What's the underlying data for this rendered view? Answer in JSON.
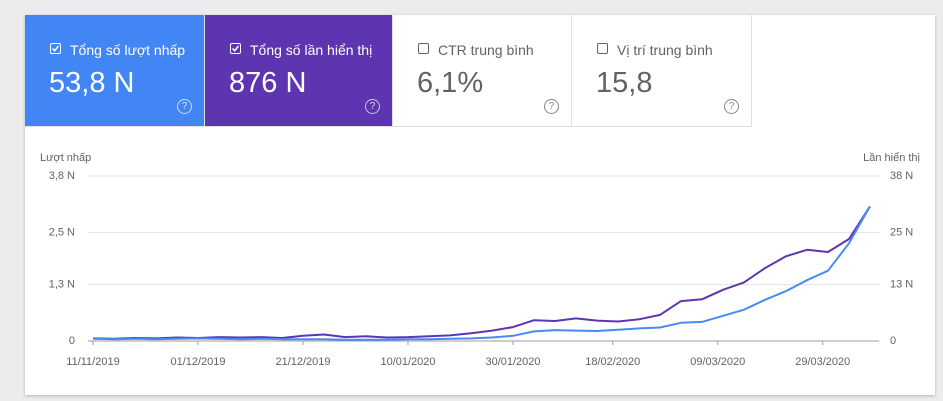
{
  "cards": [
    {
      "label": "Tổng số lượt nhấp",
      "value": "53,8 N",
      "selected": true,
      "color": "#4285f4"
    },
    {
      "label": "Tổng số lần hiển thị",
      "value": "876 N",
      "selected": true,
      "color": "#5e35b1"
    },
    {
      "label": "CTR trung bình",
      "value": "6,1%",
      "selected": false,
      "color": "#ffffff"
    },
    {
      "label": "Vị trí trung bình",
      "value": "15,8",
      "selected": false,
      "color": "#ffffff"
    }
  ],
  "chart_data": {
    "type": "line",
    "y_label": "Lượt nhấp",
    "y2_label": "Lần hiển thị",
    "x": [
      "11/11/2019",
      "15/11/2019",
      "19/11/2019",
      "23/11/2019",
      "27/11/2019",
      "01/12/2019",
      "05/12/2019",
      "09/12/2019",
      "13/12/2019",
      "17/12/2019",
      "21/12/2019",
      "25/12/2019",
      "29/12/2019",
      "02/01/2020",
      "06/01/2020",
      "10/01/2020",
      "14/01/2020",
      "18/01/2020",
      "22/01/2020",
      "26/01/2020",
      "30/01/2020",
      "03/02/2020",
      "07/02/2020",
      "11/02/2020",
      "15/02/2020",
      "19/02/2020",
      "23/02/2020",
      "27/02/2020",
      "02/03/2020",
      "06/03/2020",
      "10/03/2020",
      "14/03/2020",
      "18/03/2020",
      "22/03/2020",
      "26/03/2020",
      "30/03/2020",
      "03/04/2020",
      "07/04/2020"
    ],
    "xlim": [
      "11/11/2019",
      "07/04/2020"
    ],
    "xticks": [
      "11/11/2019",
      "01/12/2019",
      "21/12/2019",
      "10/01/2020",
      "30/01/2020",
      "18/02/2020",
      "09/03/2020",
      "29/03/2020"
    ],
    "series": [
      {
        "color": "#4a8af4",
        "axis": "y",
        "values": [
          0.05,
          0.04,
          0.05,
          0.04,
          0.05,
          0.06,
          0.05,
          0.04,
          0.05,
          0.04,
          0.04,
          0.04,
          0.03,
          0.03,
          0.03,
          0.04,
          0.04,
          0.05,
          0.06,
          0.08,
          0.12,
          0.22,
          0.25,
          0.24,
          0.23,
          0.26,
          0.29,
          0.31,
          0.42,
          0.44,
          0.58,
          0.72,
          0.95,
          1.15,
          1.4,
          1.62,
          2.25,
          3.1
        ]
      },
      {
        "color": "#5e35b1",
        "axis": "y2",
        "values": [
          0.6,
          0.5,
          0.7,
          0.6,
          0.8,
          0.7,
          0.9,
          0.8,
          0.9,
          0.7,
          1.2,
          1.5,
          0.9,
          1.1,
          0.8,
          0.9,
          1.1,
          1.3,
          1.8,
          2.4,
          3.2,
          4.8,
          4.6,
          5.2,
          4.7,
          4.5,
          5.0,
          6.0,
          9.2,
          9.6,
          11.8,
          13.5,
          16.8,
          19.5,
          21.0,
          20.5,
          23.5,
          31.0
        ]
      }
    ],
    "ylim": [
      0,
      3.8
    ],
    "yticks": [
      0,
      {
        "value": 1.3,
        "label": "1,3 N"
      },
      {
        "value": 2.5,
        "label": "2,5 N"
      },
      {
        "value": 3.8,
        "label": "3,8 N"
      }
    ],
    "y2lim": [
      0,
      38
    ],
    "y2ticks": [
      0,
      {
        "value": 13,
        "label": "13 N"
      },
      {
        "value": 25,
        "label": "25 N"
      },
      {
        "value": 38,
        "label": "38 N"
      }
    ],
    "grid": true
  }
}
